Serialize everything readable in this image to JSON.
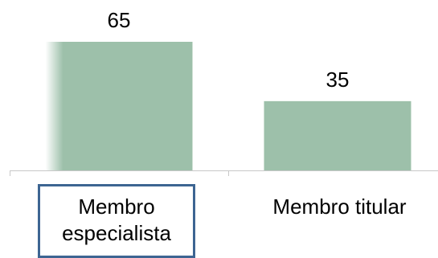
{
  "chart_data": {
    "type": "bar",
    "categories": [
      "Membro especialista",
      "Membro titular"
    ],
    "values": [
      65,
      35
    ],
    "data_labels": [
      "65",
      "35"
    ],
    "ylim": [
      0,
      65
    ],
    "grid": false,
    "bar_color": "#9dc0aa",
    "highlighted_category": "Membro especialista",
    "highlight_color": "#3d6592"
  },
  "labels": {
    "cat1_line1": "Membro",
    "cat1_line2": "especialista",
    "cat2": "Membro titular"
  }
}
